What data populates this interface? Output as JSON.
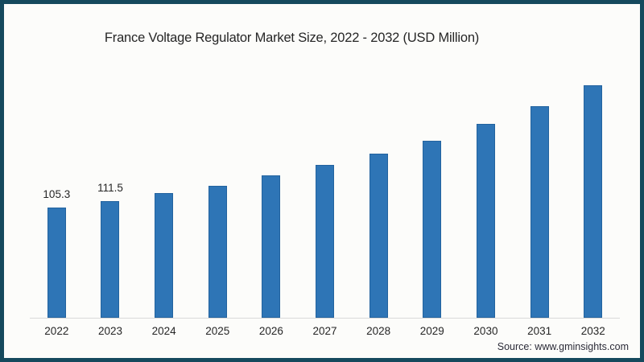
{
  "figure": {
    "title": "France Voltage Regulator Market Size, 2022 - 2032 (USD Million)",
    "source": "Source: www.gminsights.com"
  },
  "colors": {
    "bar": "#2e75b6",
    "frame_border": "#15495d",
    "background": "#fcfcfa",
    "axis_line": "#d9d9d9",
    "text": "#262626",
    "source_text": "#2b2b38"
  },
  "chart_data": {
    "type": "bar",
    "title": "France Voltage Regulator Market Size, 2022 - 2032 (USD Million)",
    "categories": [
      "2022",
      "2023",
      "2024",
      "2025",
      "2026",
      "2027",
      "2028",
      "2029",
      "2030",
      "2031",
      "2032"
    ],
    "values": [
      105.3,
      111.5,
      119.0,
      125.7,
      135.5,
      145.6,
      156.3,
      169.0,
      184.5,
      201.5,
      221.5
    ],
    "value_labels_shown": [
      "105.3",
      "111.5",
      "",
      "",
      "",
      "",
      "",
      "",
      "",
      "",
      ""
    ],
    "xlabel": "",
    "ylabel": "",
    "ylim": [
      0,
      230
    ],
    "grid": false,
    "legend": false,
    "y_axis_shown": false,
    "source": "Source: www.gminsights.com"
  }
}
